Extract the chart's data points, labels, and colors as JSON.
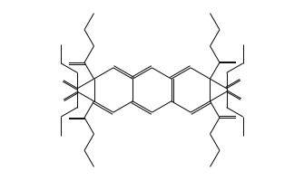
{
  "bg_color": "#ffffff",
  "line_color": "#111111",
  "lw": 0.75,
  "figsize": [
    3.35,
    2.01
  ],
  "dpi": 100,
  "xlim": [
    -6.8,
    6.8
  ],
  "ylim": [
    -3.5,
    3.5
  ]
}
